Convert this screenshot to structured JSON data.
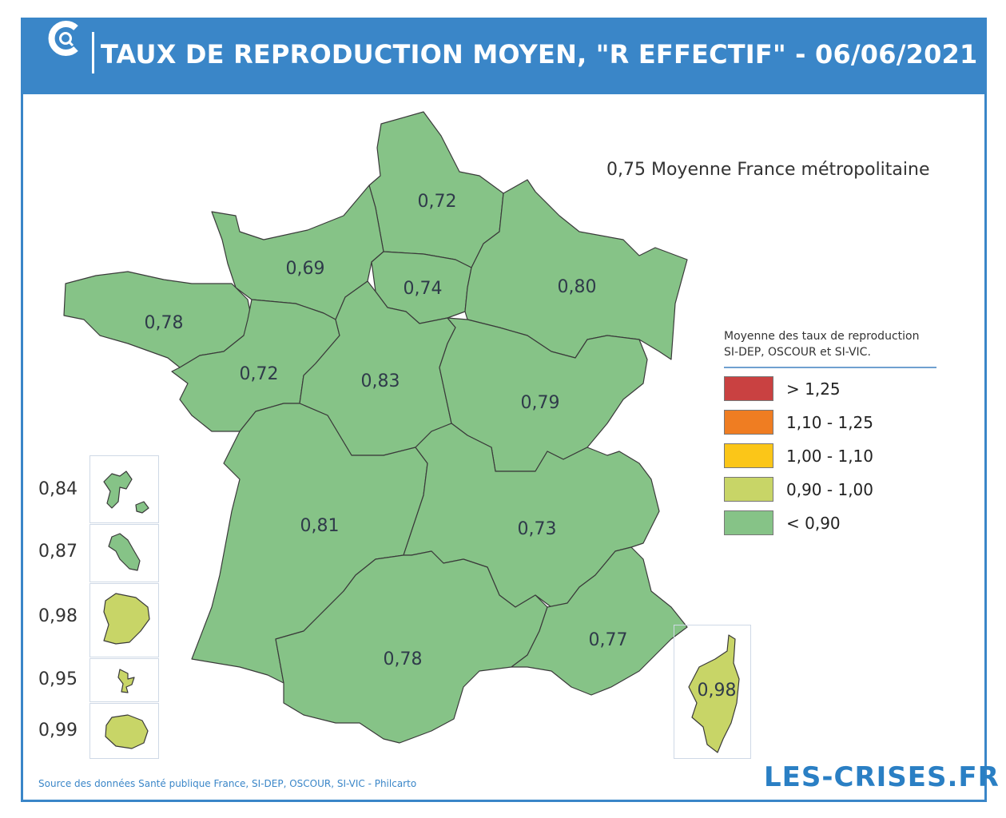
{
  "header": {
    "title": "TAUX DE REPRODUCTION MOYEN, \"R EFFECTIF\" - 06/06/2021",
    "logo_icon": "les-crises-logo-icon"
  },
  "national_average": "0,75 Moyenne France métropolitaine",
  "regions": [
    {
      "id": "hauts-de-france",
      "value": "0,72",
      "color": "#86c387"
    },
    {
      "id": "normandie",
      "value": "0,69",
      "color": "#86c387"
    },
    {
      "id": "ile-de-france",
      "value": "0,74",
      "color": "#86c387"
    },
    {
      "id": "grand-est",
      "value": "0,80",
      "color": "#86c387"
    },
    {
      "id": "bretagne",
      "value": "0,78",
      "color": "#86c387"
    },
    {
      "id": "pays-de-la-loire",
      "value": "0,72",
      "color": "#86c387"
    },
    {
      "id": "centre-val-de-loire",
      "value": "0,83",
      "color": "#86c387"
    },
    {
      "id": "bourgogne-franche-comte",
      "value": "0,79",
      "color": "#86c387"
    },
    {
      "id": "nouvelle-aquitaine",
      "value": "0,81",
      "color": "#86c387"
    },
    {
      "id": "auvergne-rhone-alpes",
      "value": "0,73",
      "color": "#86c387"
    },
    {
      "id": "occitanie",
      "value": "0,78",
      "color": "#86c387"
    },
    {
      "id": "paca",
      "value": "0,77",
      "color": "#86c387"
    },
    {
      "id": "corse",
      "value": "0,98",
      "color": "#c8d567"
    }
  ],
  "overseas": [
    {
      "id": "guadeloupe",
      "value": "0,84",
      "color": "#86c387"
    },
    {
      "id": "martinique",
      "value": "0,87",
      "color": "#86c387"
    },
    {
      "id": "guyane",
      "value": "0,98",
      "color": "#c8d567"
    },
    {
      "id": "mayotte",
      "value": "0,95",
      "color": "#c8d567"
    },
    {
      "id": "reunion",
      "value": "0,99",
      "color": "#c8d567"
    }
  ],
  "legend": {
    "title": "Moyenne des taux de reproduction SI-DEP, OSCOUR et SI-VIC.",
    "items": [
      {
        "label": "> 1,25",
        "color": "#c94141"
      },
      {
        "label": "1,10 - 1,25",
        "color": "#ef7d22"
      },
      {
        "label": "1,00 - 1,10",
        "color": "#fbc618"
      },
      {
        "label": "0,90 - 1,00",
        "color": "#c8d567"
      },
      {
        "label": "< 0,90",
        "color": "#86c387"
      }
    ]
  },
  "footer": {
    "source": "Source des données Santé publique France, SI-DEP, OSCOUR, SI-VIC - Philcarto",
    "brand": "LES-CRISES.FR"
  }
}
